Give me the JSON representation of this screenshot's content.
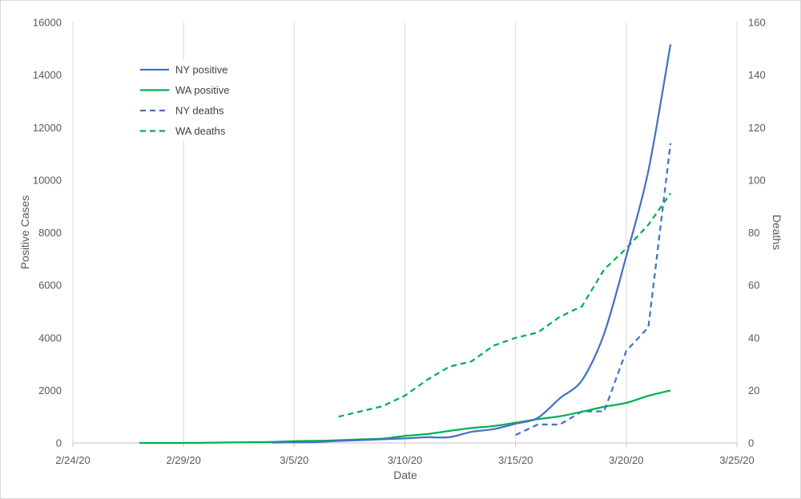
{
  "chart_data": {
    "type": "line",
    "title": "",
    "xlabel": "Date",
    "ylabel_left": "Positive Cases",
    "ylabel_right": "Deaths",
    "x_ticks": [
      "2/24/20",
      "2/29/20",
      "3/5/20",
      "3/10/20",
      "3/15/20",
      "3/20/20",
      "3/25/20"
    ],
    "x_range": [
      "2/24/20",
      "3/25/20"
    ],
    "y_left_ticks": [
      "0",
      "2000",
      "4000",
      "6000",
      "8000",
      "10000",
      "12000",
      "14000",
      "16000"
    ],
    "y_left_range": [
      0,
      16000
    ],
    "y_right_ticks": [
      "0",
      "20",
      "40",
      "60",
      "80",
      "100",
      "120",
      "140",
      "160"
    ],
    "y_right_range": [
      0,
      160
    ],
    "grid": "vertical",
    "legend_position": "top-left",
    "series": [
      {
        "name": "NY positive",
        "axis": "left",
        "style": "solid",
        "color": "#4472C4",
        "points": [
          [
            "3/4/20",
            11
          ],
          [
            "3/5/20",
            22
          ],
          [
            "3/6/20",
            33
          ],
          [
            "3/7/20",
            76
          ],
          [
            "3/8/20",
            105
          ],
          [
            "3/9/20",
            142
          ],
          [
            "3/10/20",
            173
          ],
          [
            "3/11/20",
            216
          ],
          [
            "3/12/20",
            216
          ],
          [
            "3/13/20",
            421
          ],
          [
            "3/14/20",
            524
          ],
          [
            "3/15/20",
            729
          ],
          [
            "3/16/20",
            950
          ],
          [
            "3/17/20",
            1700
          ],
          [
            "3/18/20",
            2382
          ],
          [
            "3/19/20",
            4152
          ],
          [
            "3/20/20",
            7102
          ],
          [
            "3/21/20",
            10356
          ],
          [
            "3/22/20",
            15168
          ]
        ]
      },
      {
        "name": "WA positive",
        "axis": "left",
        "style": "solid",
        "color": "#00B050",
        "points": [
          [
            "2/27/20",
            1
          ],
          [
            "2/28/20",
            1
          ],
          [
            "2/29/20",
            1
          ],
          [
            "3/1/20",
            6
          ],
          [
            "3/2/20",
            18
          ],
          [
            "3/3/20",
            27
          ],
          [
            "3/4/20",
            39
          ],
          [
            "3/5/20",
            70
          ],
          [
            "3/6/20",
            79
          ],
          [
            "3/7/20",
            102
          ],
          [
            "3/8/20",
            136
          ],
          [
            "3/9/20",
            162
          ],
          [
            "3/10/20",
            267
          ],
          [
            "3/11/20",
            337
          ],
          [
            "3/12/20",
            457
          ],
          [
            "3/13/20",
            568
          ],
          [
            "3/14/20",
            642
          ],
          [
            "3/15/20",
            769
          ],
          [
            "3/16/20",
            904
          ],
          [
            "3/17/20",
            1012
          ],
          [
            "3/18/20",
            1187
          ],
          [
            "3/19/20",
            1376
          ],
          [
            "3/20/20",
            1524
          ],
          [
            "3/21/20",
            1793
          ],
          [
            "3/22/20",
            1996
          ]
        ]
      },
      {
        "name": "NY deaths",
        "axis": "right",
        "style": "dashed",
        "color": "#4472C4",
        "points": [
          [
            "3/15/20",
            3
          ],
          [
            "3/16/20",
            7
          ],
          [
            "3/17/20",
            7
          ],
          [
            "3/18/20",
            12
          ],
          [
            "3/19/20",
            12
          ],
          [
            "3/20/20",
            35
          ],
          [
            "3/21/20",
            44
          ],
          [
            "3/22/20",
            114
          ]
        ]
      },
      {
        "name": "WA deaths",
        "axis": "right",
        "style": "dashed",
        "color": "#00B050",
        "points": [
          [
            "3/7/20",
            10
          ],
          [
            "3/8/20",
            12
          ],
          [
            "3/9/20",
            14
          ],
          [
            "3/10/20",
            18
          ],
          [
            "3/11/20",
            24
          ],
          [
            "3/12/20",
            29
          ],
          [
            "3/13/20",
            31
          ],
          [
            "3/14/20",
            37
          ],
          [
            "3/15/20",
            40
          ],
          [
            "3/16/20",
            42
          ],
          [
            "3/17/20",
            48
          ],
          [
            "3/18/20",
            52
          ],
          [
            "3/19/20",
            66
          ],
          [
            "3/20/20",
            74
          ],
          [
            "3/21/20",
            83
          ],
          [
            "3/22/20",
            95
          ]
        ]
      }
    ]
  }
}
